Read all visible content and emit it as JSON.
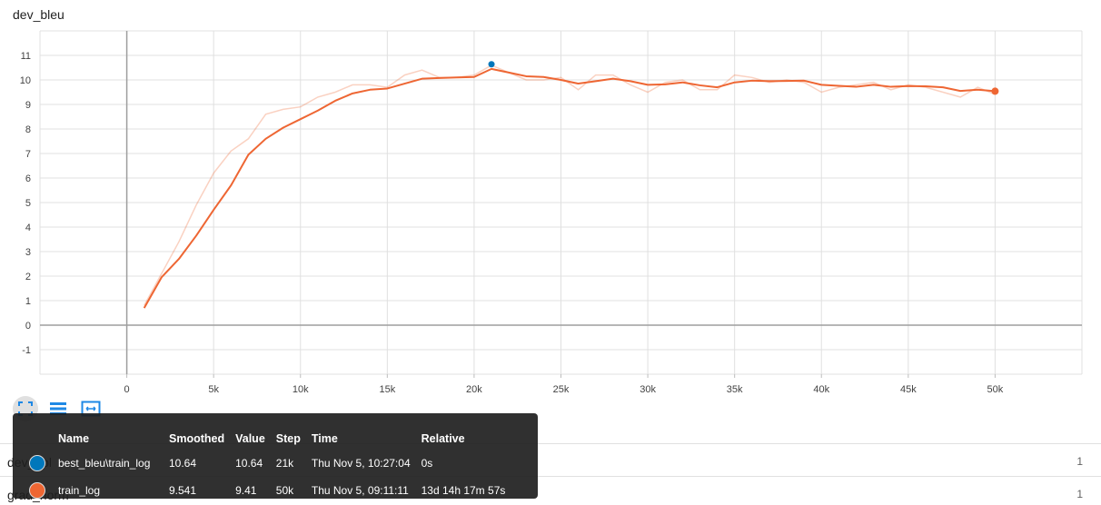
{
  "card": {
    "title": "dev_bleu"
  },
  "toolbar": {
    "buttons": [
      {
        "name": "fit-domain-icon",
        "active": true
      },
      {
        "name": "toggle-log-icon",
        "active": false
      },
      {
        "name": "expand-icon",
        "active": false
      }
    ]
  },
  "below_cards": [
    {
      "label": "dev_ppl",
      "count": "1"
    },
    {
      "label": "grad_norm",
      "count": "1"
    }
  ],
  "tooltip": {
    "headers": [
      "Name",
      "Smoothed",
      "Value",
      "Step",
      "Time",
      "Relative"
    ],
    "rows": [
      {
        "color": "#0077bb",
        "name": "best_bleu\\train_log",
        "smoothed": "10.64",
        "value": "10.64",
        "step": "21k",
        "time": "Thu Nov 5, 10:27:04",
        "relative": "0s"
      },
      {
        "color": "#ee6633",
        "name": "train_log",
        "smoothed": "9.541",
        "value": "9.41",
        "step": "50k",
        "time": "Thu Nov 5, 09:11:11",
        "relative": "13d 14h 17m 57s"
      }
    ]
  },
  "chart_data": {
    "type": "line",
    "title": "dev_bleu",
    "xlim": [
      -5000,
      55000
    ],
    "ylim": [
      -2,
      12
    ],
    "x_ticks": [
      0,
      5000,
      10000,
      15000,
      20000,
      25000,
      30000,
      35000,
      40000,
      45000,
      50000
    ],
    "x_tick_labels": [
      "0",
      "5k",
      "10k",
      "15k",
      "20k",
      "25k",
      "30k",
      "35k",
      "40k",
      "45k",
      "50k"
    ],
    "y_ticks": [
      -1,
      0,
      1,
      2,
      3,
      4,
      5,
      6,
      7,
      8,
      9,
      10,
      11
    ],
    "y_tick_labels": [
      "-1",
      "0",
      "1",
      "2",
      "3",
      "4",
      "5",
      "6",
      "7",
      "8",
      "9",
      "10",
      "11"
    ],
    "grid": true,
    "series": [
      {
        "color": "#ee6633",
        "raw_opacity": 0.3,
        "x": [
          1000,
          2000,
          3000,
          4000,
          5000,
          6000,
          7000,
          8000,
          9000,
          10000,
          11000,
          12000,
          13000,
          14000,
          15000,
          16000,
          17000,
          18000,
          19000,
          20000,
          21000,
          22000,
          23000,
          24000,
          25000,
          26000,
          27000,
          28000,
          29000,
          30000,
          31000,
          32000,
          33000,
          34000,
          35000,
          36000,
          37000,
          38000,
          39000,
          40000,
          41000,
          42000,
          43000,
          44000,
          45000,
          46000,
          47000,
          48000,
          49000,
          50000
        ],
        "raw": [
          0.8,
          2.1,
          3.4,
          4.9,
          6.2,
          7.1,
          7.6,
          8.6,
          8.8,
          8.9,
          9.3,
          9.5,
          9.8,
          9.8,
          9.7,
          10.2,
          10.4,
          10.1,
          10.1,
          10.2,
          10.6,
          10.3,
          10.0,
          10.0,
          10.1,
          9.6,
          10.2,
          10.2,
          9.8,
          9.5,
          9.9,
          10.0,
          9.6,
          9.6,
          10.2,
          10.1,
          9.9,
          10.0,
          9.9,
          9.5,
          9.7,
          9.8,
          9.9,
          9.6,
          9.8,
          9.7,
          9.5,
          9.3,
          9.7,
          9.41
        ],
        "smoothed": [
          0.7,
          1.95,
          2.7,
          3.65,
          4.7,
          5.7,
          6.95,
          7.6,
          8.05,
          8.4,
          8.75,
          9.15,
          9.45,
          9.6,
          9.65,
          9.85,
          10.05,
          10.08,
          10.1,
          10.12,
          10.45,
          10.3,
          10.15,
          10.12,
          10.0,
          9.85,
          9.95,
          10.05,
          9.95,
          9.8,
          9.82,
          9.9,
          9.78,
          9.7,
          9.9,
          9.97,
          9.95,
          9.96,
          9.97,
          9.8,
          9.76,
          9.72,
          9.8,
          9.72,
          9.75,
          9.74,
          9.7,
          9.55,
          9.6,
          9.541
        ],
        "marker": {
          "x": 50000,
          "y": 9.541
        }
      },
      {
        "color": "#0077bb",
        "x": [
          21000
        ],
        "y": [
          10.64
        ]
      }
    ]
  }
}
